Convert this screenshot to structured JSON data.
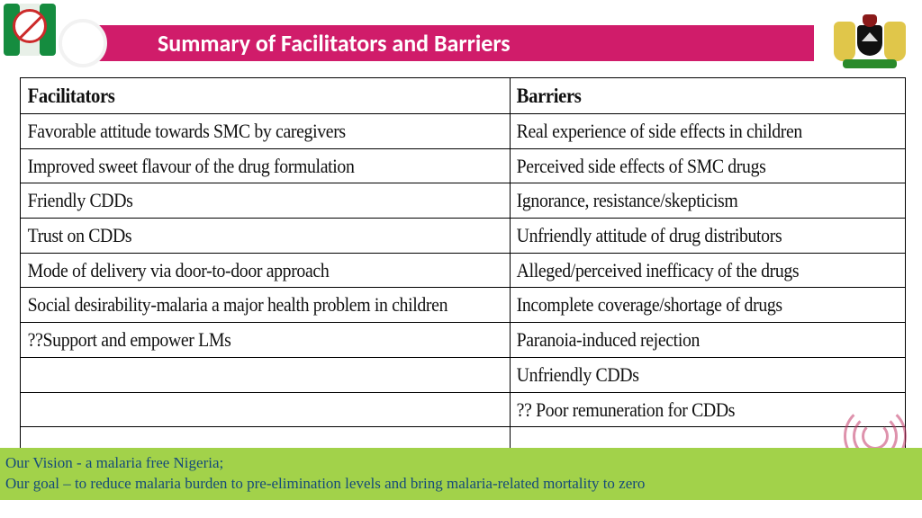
{
  "title": "Summary of Facilitators and Barriers",
  "title_bar_color": "#d01c6a",
  "columns": {
    "facilitators": "Facilitators",
    "barriers": "Barriers"
  },
  "rows": [
    {
      "f": "Favorable attitude towards SMC by caregivers",
      "b": "Real experience of side effects in children"
    },
    {
      "f": "Improved sweet flavour of the drug formulation",
      "b": "Perceived side effects of SMC drugs"
    },
    {
      "f": "Friendly CDDs",
      "b": "Ignorance, resistance/skepticism"
    },
    {
      "f": "Trust on CDDs",
      "b": "Unfriendly attitude of drug distributors"
    },
    {
      "f": "Mode of delivery via door-to-door approach",
      "b": "Alleged/perceived inefficacy of the drugs"
    },
    {
      "f": "Social desirability-malaria a major health problem in children",
      "b": "Incomplete coverage/shortage of drugs"
    },
    {
      "f": "??Support and empower LMs",
      "b": "Paranoia-induced rejection"
    },
    {
      "f": "",
      "b": "Unfriendly CDDs"
    },
    {
      "f": "",
      "b": "?? Poor remuneration for CDDs"
    },
    {
      "f": "",
      "b": ""
    }
  ],
  "footer": {
    "line1": "Our Vision - a malaria free Nigeria;",
    "line2": "Our goal – to reduce malaria burden to pre-elimination levels and bring malaria-related mortality to zero",
    "bg_color": "#a2d24a",
    "text_color": "#154a7a"
  },
  "table_style": {
    "border_color": "#000000",
    "header_fontsize": 23,
    "cell_fontsize": 22,
    "font_family": "Times New Roman"
  }
}
